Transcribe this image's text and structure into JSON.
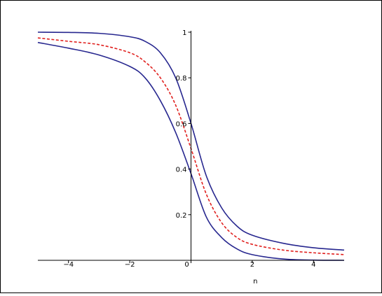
{
  "chart_data": {
    "type": "line",
    "xlabel": "n",
    "ylabel": "",
    "xlim": [
      -5,
      5
    ],
    "ylim": [
      0,
      1
    ],
    "grid": false,
    "legend": "none",
    "x_ticks": [
      {
        "value": -4,
        "label": "−4"
      },
      {
        "value": -2,
        "label": "−2"
      },
      {
        "value": 0,
        "label": "0"
      },
      {
        "value": 2,
        "label": "2"
      },
      {
        "value": 4,
        "label": "4"
      }
    ],
    "y_ticks": [
      {
        "value": 0.2,
        "label": "0.2"
      },
      {
        "value": 0.4,
        "label": "0.4"
      },
      {
        "value": 0.6,
        "label": "0.6"
      },
      {
        "value": 0.8,
        "label": "0.8"
      },
      {
        "value": 1,
        "label": "1"
      }
    ],
    "series": [
      {
        "style": "solid",
        "color": "#27278f",
        "x": [
          -5,
          -4,
          -3,
          -2,
          -1.5,
          -1,
          -0.5,
          0,
          0.5,
          1,
          1.5,
          2,
          3,
          4,
          5
        ],
        "y": [
          1.0,
          0.999,
          0.995,
          0.98,
          0.96,
          0.91,
          0.8,
          0.6,
          0.37,
          0.23,
          0.15,
          0.11,
          0.075,
          0.055,
          0.045
        ]
      },
      {
        "style": "dashed",
        "color": "#e0201e",
        "x": [
          -5,
          -4,
          -3,
          -2,
          -1.5,
          -1,
          -0.5,
          0,
          0.5,
          1,
          1.5,
          2,
          3,
          4,
          5
        ],
        "y": [
          0.975,
          0.96,
          0.945,
          0.91,
          0.87,
          0.8,
          0.68,
          0.49,
          0.29,
          0.165,
          0.1,
          0.07,
          0.045,
          0.033,
          0.025
        ]
      },
      {
        "style": "solid",
        "color": "#27278f",
        "x": [
          -5,
          -4,
          -3,
          -2,
          -1.5,
          -1,
          -0.5,
          0,
          0.5,
          1,
          1.5,
          2,
          3,
          4,
          5
        ],
        "y": [
          0.955,
          0.93,
          0.9,
          0.85,
          0.8,
          0.7,
          0.56,
          0.38,
          0.19,
          0.1,
          0.05,
          0.025,
          0.006,
          0.001,
          0.0
        ]
      }
    ]
  }
}
